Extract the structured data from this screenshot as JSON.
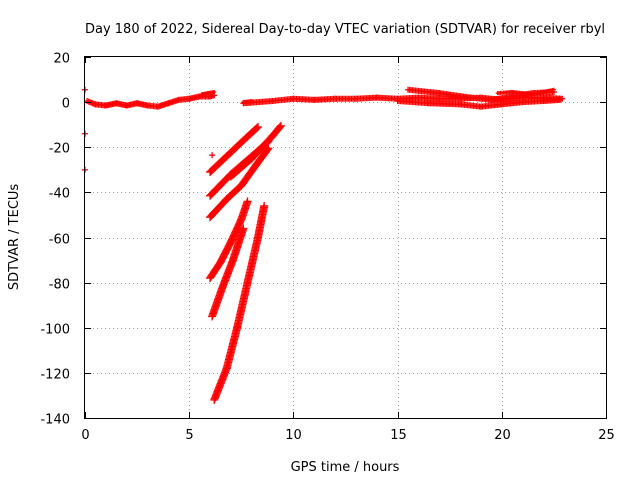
{
  "chart_data": {
    "type": "scatter",
    "title": "Day 180 of 2022, Sidereal Day-to-day VTEC variation (SDTVAR) for receiver rbyl",
    "xlabel": "GPS time / hours",
    "ylabel": "SDTVAR / TECUs",
    "xlim": [
      0,
      25
    ],
    "ylim": [
      -140,
      20
    ],
    "xticks": [
      "0",
      "5",
      "10",
      "15",
      "20",
      "25"
    ],
    "yticks": [
      "20",
      "0",
      "-20",
      "-40",
      "-60",
      "-80",
      "-100",
      "-120",
      "-140"
    ],
    "grid": true,
    "marker": "plus",
    "series_color": "#ff0000",
    "points": [
      [
        0.0,
        5.5
      ],
      [
        0.0,
        -14.0
      ],
      [
        0.0,
        -30.0
      ],
      [
        6.1,
        -23.5
      ]
    ],
    "segments": [
      {
        "x": [
          0.1,
          0.5,
          1.0,
          1.5,
          2.0,
          2.5,
          3.0,
          3.5,
          4.0,
          4.5,
          5.0,
          5.5,
          6.0,
          6.2
        ],
        "y": [
          0.5,
          -1.0,
          -1.5,
          -0.5,
          -1.5,
          -0.5,
          -1.5,
          -2.0,
          -0.5,
          1.0,
          1.5,
          2.5,
          2.5,
          3.0
        ],
        "thickness": 3
      },
      {
        "x": [
          5.6,
          5.9,
          6.2
        ],
        "y": [
          3.5,
          4.0,
          4.5
        ],
        "thickness": 2
      },
      {
        "x": [
          7.6,
          8.0
        ],
        "y": [
          0.0,
          0.5
        ],
        "thickness": 2
      },
      {
        "x": [
          7.6,
          9.0,
          10.0,
          11.0,
          12.0,
          13.0,
          14.0,
          15.0,
          16.0,
          17.0,
          18.0,
          19.0,
          20.0,
          21.0,
          22.0,
          22.9
        ],
        "y": [
          -0.5,
          0.5,
          1.5,
          1.0,
          1.5,
          1.5,
          2.0,
          1.5,
          2.0,
          1.5,
          1.5,
          2.0,
          1.0,
          2.0,
          2.0,
          1.5
        ],
        "thickness": 3
      },
      {
        "x": [
          15.5,
          17.0,
          18.5,
          19.5,
          20.5,
          21.5,
          22.5
        ],
        "y": [
          5.5,
          4.0,
          2.0,
          1.0,
          2.5,
          4.0,
          4.5
        ],
        "thickness": 3
      },
      {
        "x": [
          15.0,
          16.5,
          18.0,
          19.0,
          20.0,
          21.0,
          22.0,
          22.8
        ],
        "y": [
          0.5,
          -0.5,
          -1.0,
          -2.0,
          -1.0,
          0.0,
          0.5,
          1.0
        ],
        "thickness": 3
      },
      {
        "x": [
          19.8,
          20.5,
          21.5,
          22.5
        ],
        "y": [
          4.0,
          4.5,
          3.5,
          5.5
        ],
        "thickness": 2
      },
      {
        "x": [
          6.0,
          6.8,
          7.6,
          8.3
        ],
        "y": [
          -31.0,
          -24.0,
          -17.0,
          -11.0
        ],
        "thickness": 4
      },
      {
        "x": [
          6.0,
          7.0,
          8.0,
          8.8
        ],
        "y": [
          -41.5,
          -32.0,
          -24.0,
          -17.5
        ],
        "thickness": 4
      },
      {
        "x": [
          7.0,
          8.0,
          9.0,
          9.4
        ],
        "y": [
          -33.0,
          -25.0,
          -15.0,
          -10.5
        ],
        "thickness": 4
      },
      {
        "x": [
          6.0,
          6.8,
          7.5,
          8.2,
          8.8
        ],
        "y": [
          -51.0,
          -43.0,
          -37.0,
          -28.0,
          -20.5
        ],
        "thickness": 4
      },
      {
        "x": [
          6.0,
          6.5,
          7.0,
          7.5,
          7.8
        ],
        "y": [
          -78.0,
          -71.0,
          -62.0,
          -52.0,
          -44.0
        ],
        "thickness": 4
      },
      {
        "x": [
          6.1,
          6.6,
          7.1,
          7.6
        ],
        "y": [
          -95.0,
          -82.0,
          -70.0,
          -56.0
        ],
        "thickness": 4
      },
      {
        "x": [
          6.2,
          6.8,
          7.3,
          7.8,
          8.3,
          8.6
        ],
        "y": [
          -132.0,
          -118.0,
          -100.0,
          -80.0,
          -60.0,
          -46.0
        ],
        "thickness": 4
      }
    ]
  }
}
